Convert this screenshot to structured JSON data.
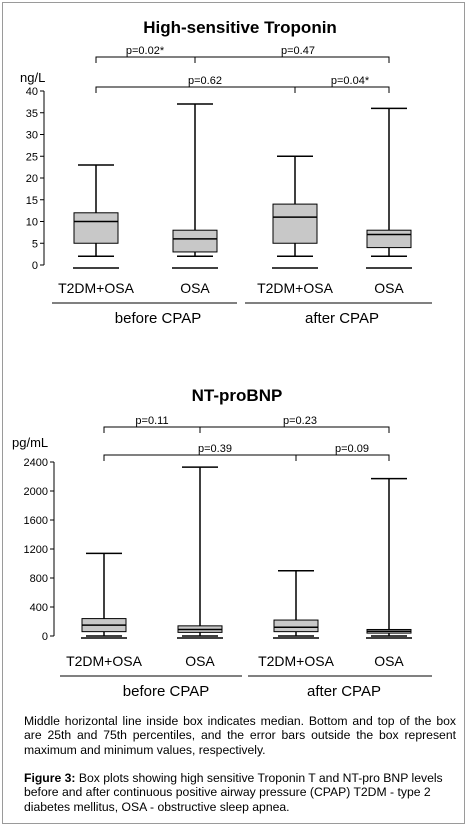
{
  "chart_data": [
    {
      "type": "box",
      "title": "High-sensitive Troponin",
      "ylabel": "ng/L",
      "ylim": [
        0,
        40
      ],
      "yticks": [
        0,
        5,
        10,
        15,
        20,
        25,
        30,
        35,
        40
      ],
      "categories": [
        "T2DM+OSA",
        "OSA",
        "T2DM+OSA",
        "OSA"
      ],
      "groups": [
        "before CPAP",
        "after CPAP"
      ],
      "boxes": [
        {
          "min": 2,
          "q1": 5,
          "median": 10,
          "q3": 12,
          "max": 23
        },
        {
          "min": 2,
          "q1": 3,
          "median": 6,
          "q3": 8,
          "max": 37
        },
        {
          "min": 2,
          "q1": 5,
          "median": 11,
          "q3": 14,
          "max": 25
        },
        {
          "min": 2,
          "q1": 4,
          "median": 7,
          "q3": 8,
          "max": 36
        }
      ],
      "comparisons": [
        {
          "label": "p=0.02*",
          "from": 0,
          "to": 1
        },
        {
          "label": "p=0.47",
          "from": 1,
          "to": 3
        },
        {
          "label": "p=0.62",
          "from": 0,
          "to": 2
        },
        {
          "label": "p=0.04*",
          "from": 2,
          "to": 3
        }
      ]
    },
    {
      "type": "box",
      "title": "NT-proBNP",
      "ylabel": "pg/mL",
      "ylim": [
        0,
        2400
      ],
      "yticks": [
        0,
        400,
        800,
        1200,
        1600,
        2000,
        2400
      ],
      "categories": [
        "T2DM+OSA",
        "OSA",
        "T2DM+OSA",
        "OSA"
      ],
      "groups": [
        "before CPAP",
        "after CPAP"
      ],
      "boxes": [
        {
          "min": 0,
          "q1": 60,
          "median": 150,
          "q3": 240,
          "max": 1140
        },
        {
          "min": 0,
          "q1": 50,
          "median": 90,
          "q3": 140,
          "max": 2330
        },
        {
          "min": 0,
          "q1": 60,
          "median": 120,
          "q3": 220,
          "max": 900
        },
        {
          "min": 0,
          "q1": 40,
          "median": 65,
          "q3": 90,
          "max": 2170
        }
      ],
      "comparisons": [
        {
          "label": "p=0.11",
          "from": 0,
          "to": 1
        },
        {
          "label": "p=0.23",
          "from": 1,
          "to": 3
        },
        {
          "label": "p=0.39",
          "from": 0,
          "to": 2
        },
        {
          "label": "p=0.09",
          "from": 2,
          "to": 3
        }
      ]
    }
  ],
  "note": "Middle horizontal line inside box indicates median. Bottom and top of the box are 25th and 75th percentiles, and the error bars outside the box represent maximum and minimum values, respectively.",
  "caption": {
    "label": "Figure 3:",
    "text": " Box plots showing high sensitive Troponin T and NT-pro BNP levels before and after continuous positive airway pressure (CPAP) T2DM - type 2 diabetes mellitus, OSA - obstructive sleep apnea."
  },
  "colors": {
    "box_fill": "#c8c8c8",
    "line": "#000000"
  }
}
